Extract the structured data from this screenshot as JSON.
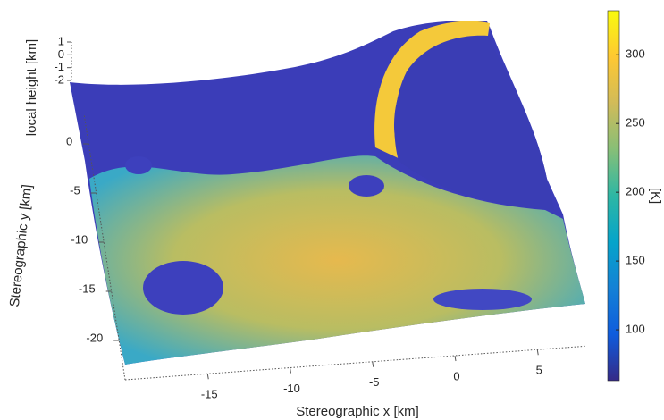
{
  "chart_data": {
    "type": "surface",
    "xlabel": "Stereographic x [km]",
    "ylabel": "Stereographic y [km]",
    "zlabel": "local height [km]",
    "xlim": [
      -20,
      8
    ],
    "xticks": [
      -15,
      -10,
      -5,
      0,
      5
    ],
    "ylim": [
      -24,
      3
    ],
    "yticks": [
      0,
      -5,
      -10,
      -15,
      -20
    ],
    "zlim": [
      -2,
      1
    ],
    "zticks": [
      1,
      0,
      -1,
      -2
    ],
    "colorbar": {
      "label": "[K]",
      "lim": [
        63,
        332
      ],
      "ticks": [
        100,
        150,
        200,
        250,
        300
      ],
      "colors": [
        "#352a87",
        "#0f5cdd",
        "#1481d6",
        "#06a4ca",
        "#2eb7a4",
        "#87bf77",
        "#d1bb59",
        "#fec832",
        "#f9fb0e"
      ]
    }
  }
}
